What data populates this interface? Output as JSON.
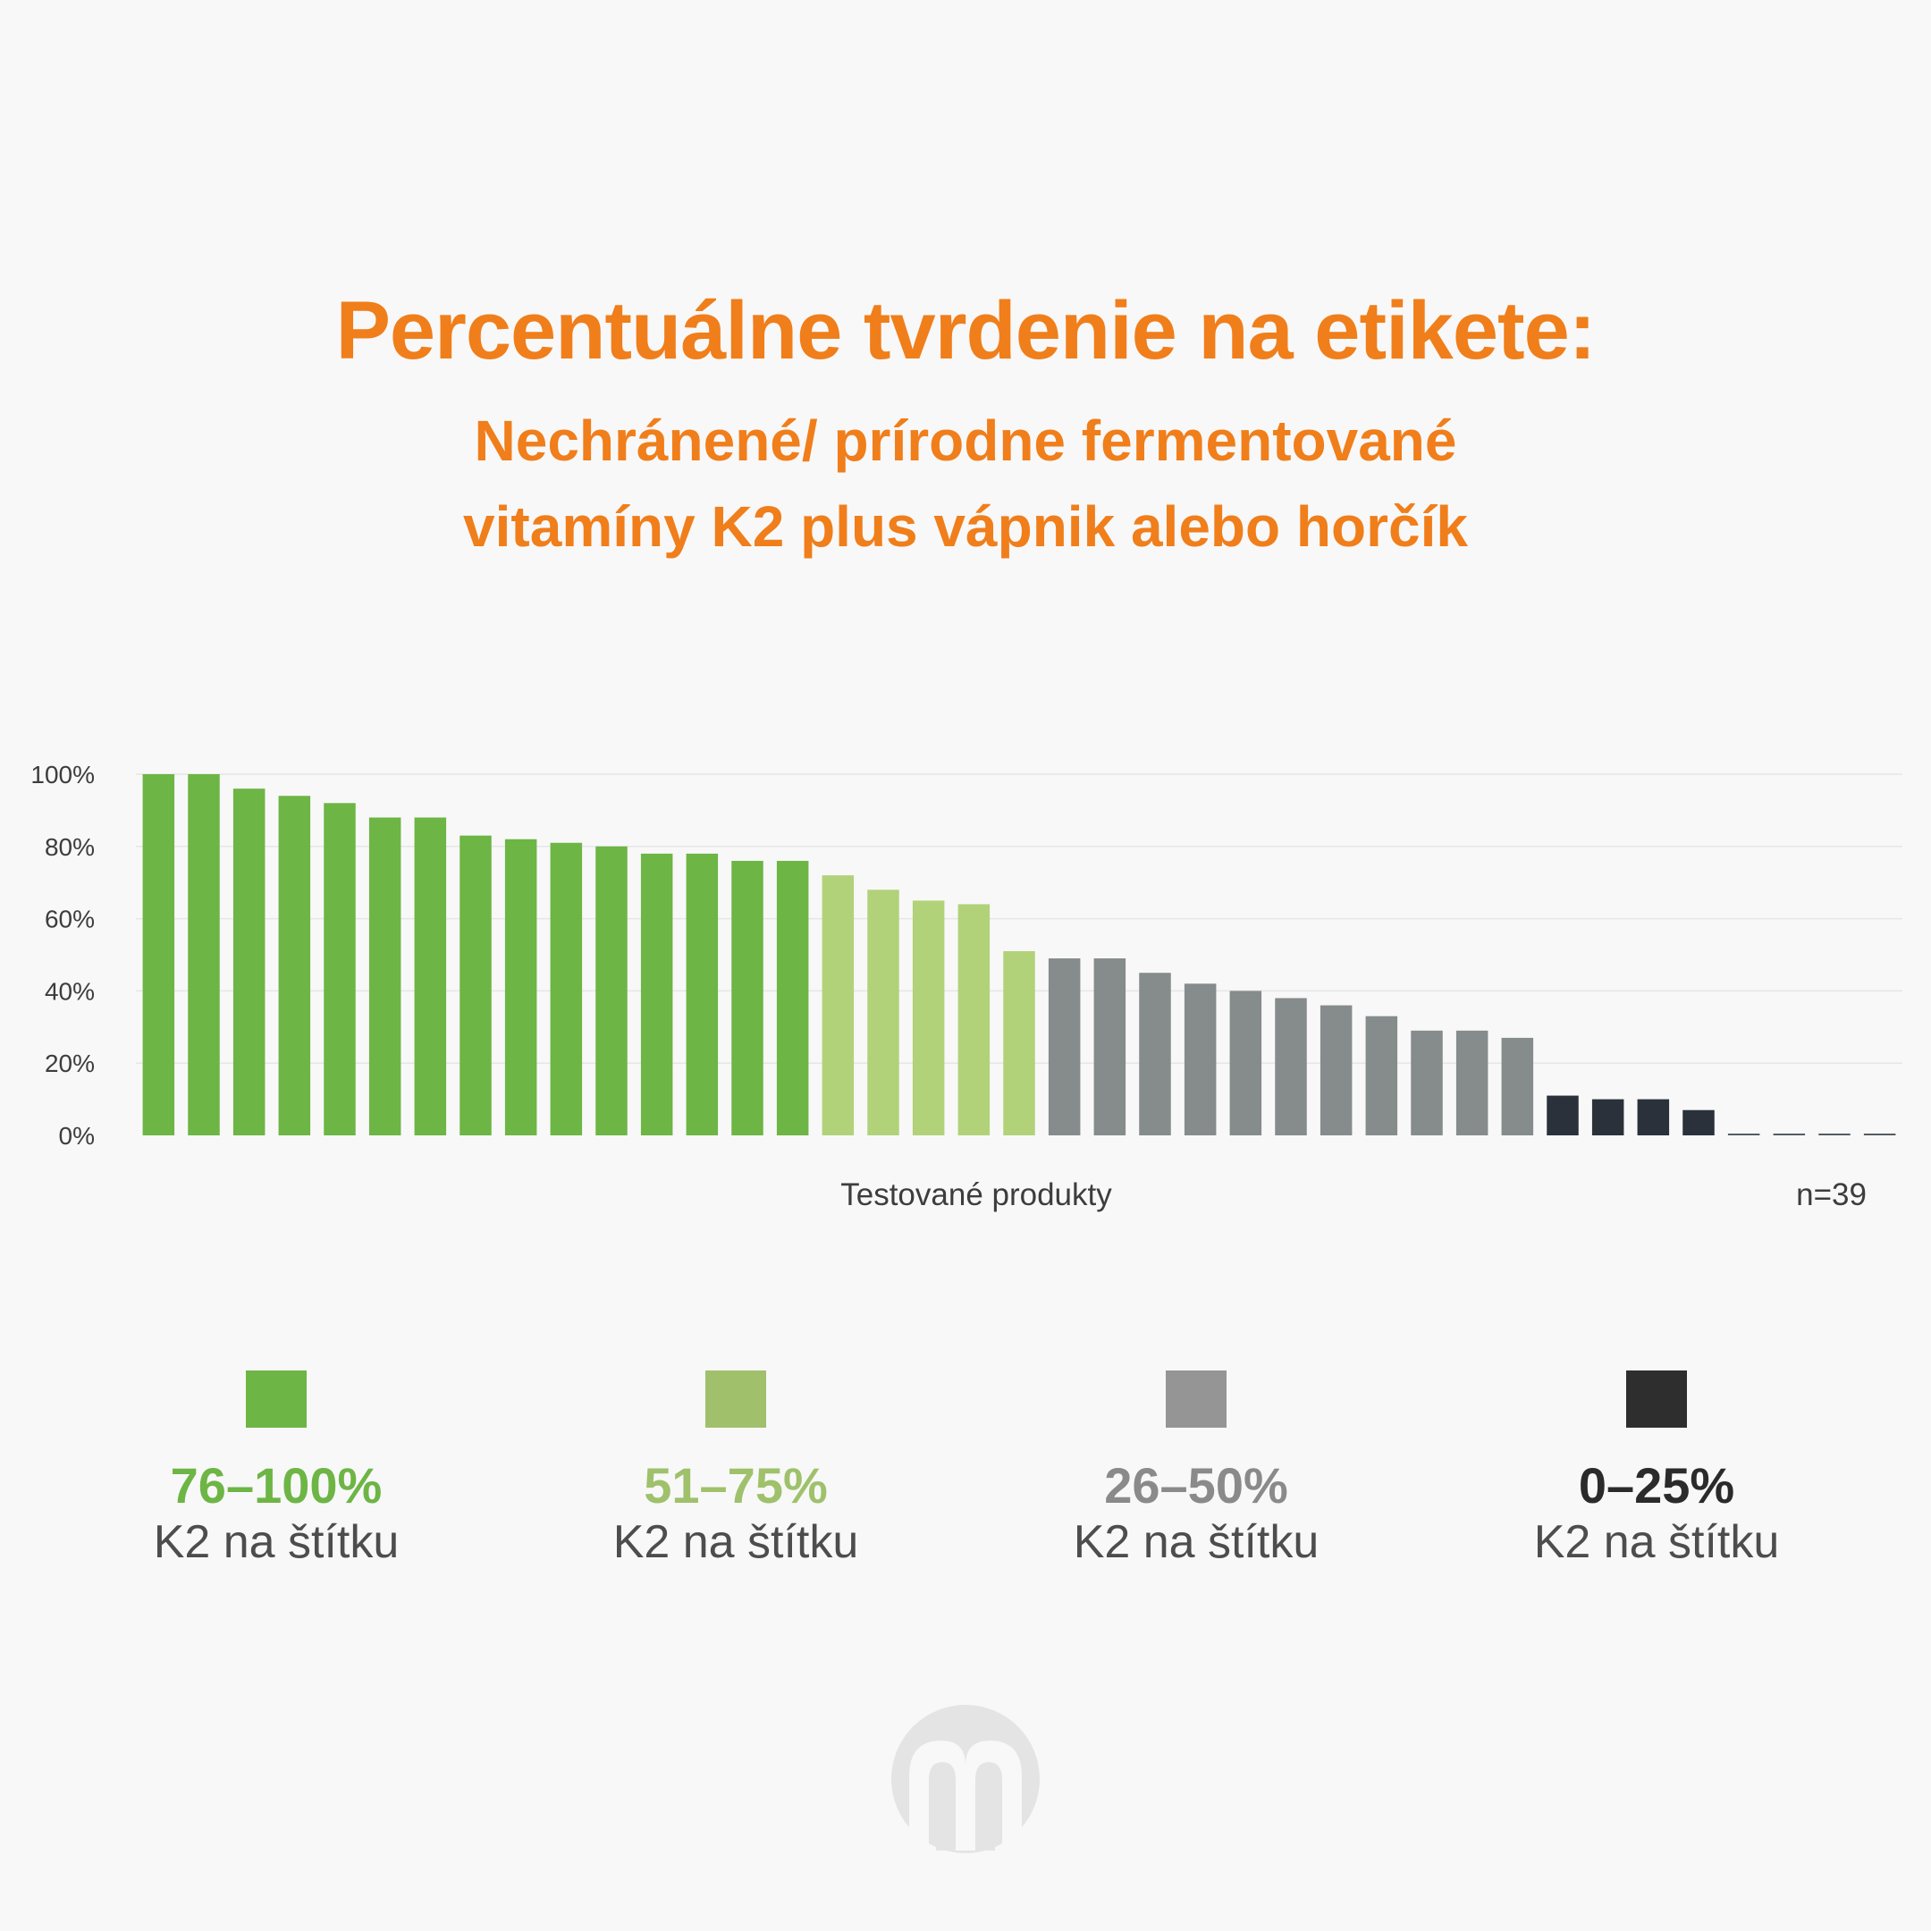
{
  "title": "Percentuálne tvrdenie na etikete:",
  "subtitle_lines": [
    "Nechránené/ prírodne fermentované",
    "vitamíny K2 plus vápnik alebo horčík"
  ],
  "chart_data": {
    "type": "bar",
    "xlabel": "Testované produkty",
    "annotation": "n=39",
    "ylim": [
      0,
      100
    ],
    "yticks": [
      0,
      20,
      40,
      60,
      80,
      100
    ],
    "ytick_labels": [
      "0%",
      "20%",
      "40%",
      "60%",
      "80%",
      "100%"
    ],
    "grid": true,
    "values": [
      100,
      100,
      96,
      94,
      92,
      88,
      88,
      83,
      82,
      81,
      80,
      78,
      78,
      76,
      76,
      72,
      68,
      65,
      64,
      51,
      49,
      49,
      45,
      42,
      40,
      38,
      36,
      33,
      29,
      29,
      27,
      11,
      10,
      10,
      7,
      0,
      0,
      0,
      0
    ],
    "categories_colors": {
      "76-100": "#6db545",
      "51-75": "#b2d27a",
      "26-50": "#868b8b",
      "0-25": "#2a313a"
    }
  },
  "legend": [
    {
      "range": "76–100%",
      "caption": "K2 na štítku",
      "swatch": "#6db545",
      "text_color": "#6db545"
    },
    {
      "range": "51–75%",
      "caption": "K2 na štítku",
      "swatch": "#a0c06c",
      "text_color": "#9fc16b"
    },
    {
      "range": "26–50%",
      "caption": "K2 na štítku",
      "swatch": "#959595",
      "text_color": "#8a8a8a"
    },
    {
      "range": "0–25%",
      "caption": "K2 na štítku",
      "swatch": "#2e2e2e",
      "text_color": "#2b2b2b"
    }
  ],
  "logo_icon": "logo-icon"
}
